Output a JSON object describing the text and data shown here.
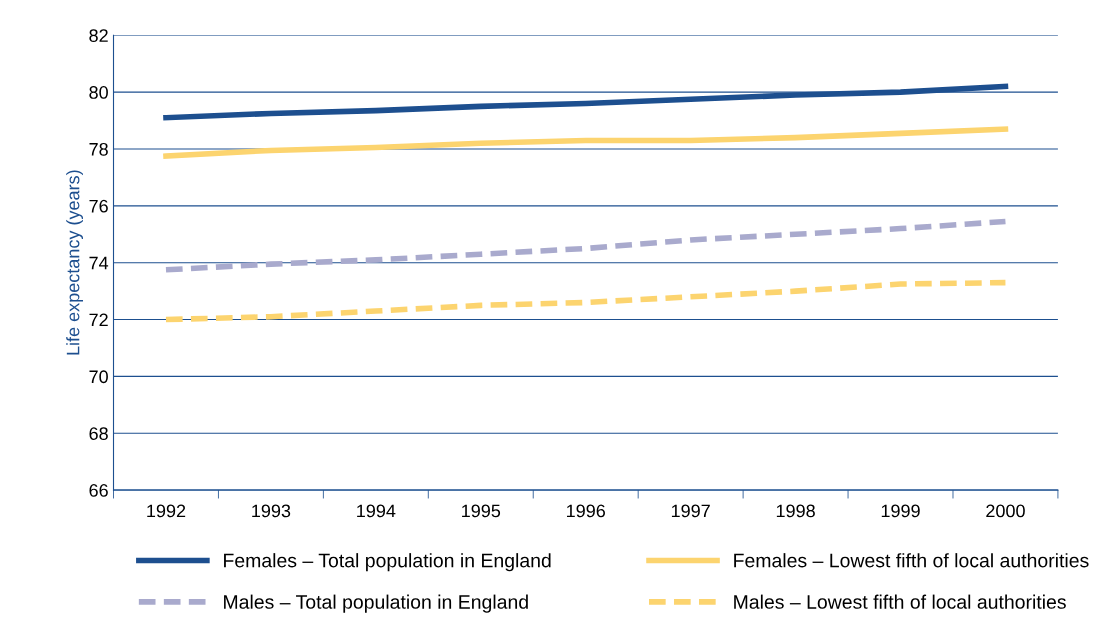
{
  "chart_data": {
    "type": "line",
    "ylabel": "Life expectancy (years)",
    "categories": [
      "1992",
      "1993",
      "1994",
      "1995",
      "1996",
      "1997",
      "1998",
      "1999",
      "2000"
    ],
    "ylim": [
      66,
      82
    ],
    "yticks": [
      66,
      68,
      70,
      72,
      74,
      76,
      78,
      80,
      82
    ],
    "grid": "y",
    "legend": "bottom",
    "marker": "none",
    "series": [
      {
        "name": "Females – Total population in England",
        "color": "#1d4f8f",
        "line_style": "solid",
        "values": [
          79.1,
          79.25,
          79.35,
          79.5,
          79.6,
          79.75,
          79.9,
          80.0,
          80.2
        ]
      },
      {
        "name": "Males – Total population in England",
        "color": "#a9aacd",
        "line_style": "dashed",
        "values": [
          73.75,
          73.95,
          74.1,
          74.3,
          74.5,
          74.8,
          75.0,
          75.2,
          75.45
        ]
      },
      {
        "name": "Females – Lowest fifth of local authorities",
        "color": "#fcd46f",
        "line_style": "solid",
        "values": [
          77.75,
          77.95,
          78.05,
          78.2,
          78.3,
          78.3,
          78.4,
          78.55,
          78.7
        ]
      },
      {
        "name": "Males – Lowest fifth of local authorities",
        "color": "#fcd46f",
        "line_style": "dashed",
        "values": [
          72.0,
          72.1,
          72.3,
          72.5,
          72.6,
          72.8,
          73.0,
          73.25,
          73.3
        ]
      }
    ]
  }
}
